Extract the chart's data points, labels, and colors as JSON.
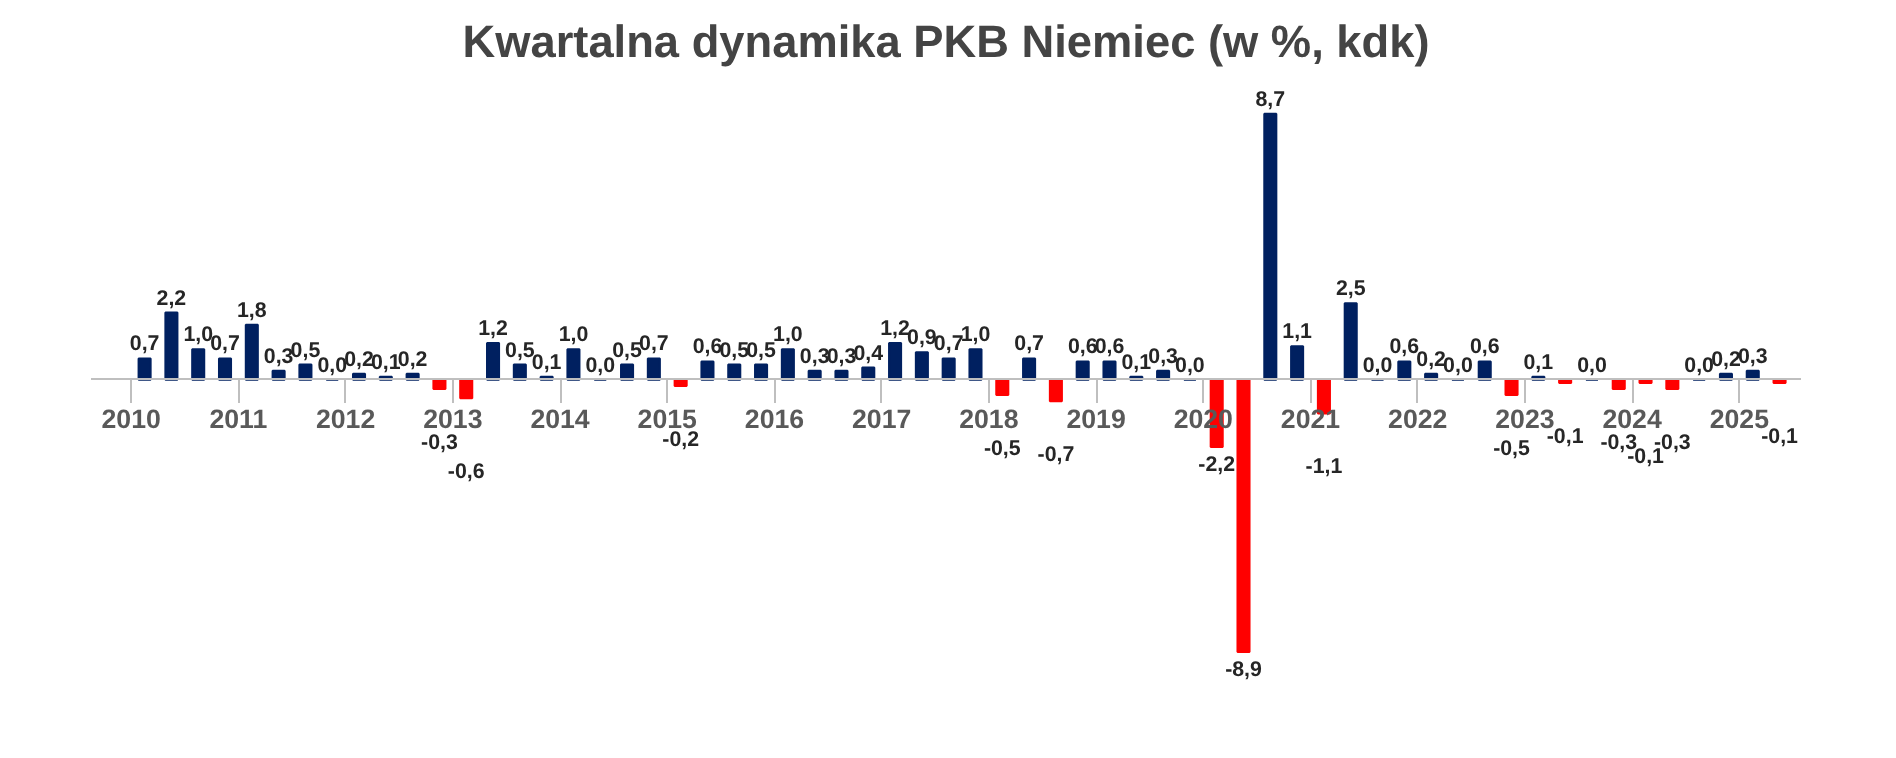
{
  "chart_data": {
    "type": "bar",
    "title": "Kwartalna dynamika PKB Niemiec (w %, kdk)",
    "categories": [
      "2010",
      null,
      null,
      null,
      "2011",
      null,
      null,
      null,
      "2012",
      null,
      null,
      null,
      "2013",
      null,
      null,
      null,
      "2014",
      null,
      null,
      null,
      "2015",
      null,
      null,
      null,
      "2016",
      null,
      null,
      null,
      "2017",
      null,
      null,
      null,
      "2018",
      null,
      null,
      null,
      "2019",
      null,
      null,
      null,
      "2020",
      null,
      null,
      null,
      "2021",
      null,
      null,
      null,
      "2022",
      null,
      null,
      null,
      "2023",
      null,
      null,
      null,
      "2024",
      null,
      null,
      null,
      "2025",
      null
    ],
    "values": [
      0.7,
      2.2,
      1.0,
      0.7,
      1.8,
      0.3,
      0.5,
      0.0,
      0.2,
      0.1,
      0.2,
      -0.3,
      -0.6,
      1.2,
      0.5,
      0.1,
      1.0,
      0.0,
      0.5,
      0.7,
      -0.2,
      0.6,
      0.5,
      0.5,
      1.0,
      0.3,
      0.3,
      0.4,
      1.2,
      0.9,
      0.7,
      1.0,
      -0.5,
      0.7,
      -0.7,
      0.6,
      0.6,
      0.1,
      0.3,
      0.0,
      -2.2,
      -8.9,
      8.7,
      1.1,
      -1.1,
      2.5,
      0.0,
      0.6,
      0.2,
      0.0,
      0.6,
      -0.5,
      0.1,
      -0.1,
      0.0,
      -0.3,
      -0.1,
      -0.3,
      0.0,
      0.2,
      0.3,
      -0.1
    ],
    "colors": [
      "#002060",
      "#002060",
      "#002060",
      "#002060",
      "#002060",
      "#002060",
      "#002060",
      "#002060",
      "#002060",
      "#002060",
      "#002060",
      "#ff0000",
      "#ff0000",
      "#002060",
      "#002060",
      "#002060",
      "#002060",
      "#002060",
      "#002060",
      "#002060",
      "#ff0000",
      "#002060",
      "#002060",
      "#002060",
      "#002060",
      "#002060",
      "#002060",
      "#002060",
      "#002060",
      "#002060",
      "#002060",
      "#002060",
      "#ff0000",
      "#002060",
      "#ff0000",
      "#002060",
      "#002060",
      "#002060",
      "#002060",
      "#002060",
      "#ff0000",
      "#ff0000",
      "#002060",
      "#002060",
      "#ff0000",
      "#002060",
      "#002060",
      "#002060",
      "#002060",
      "#002060",
      "#002060",
      "#ff0000",
      "#002060",
      "#ff0000",
      "#002060",
      "#ff0000",
      "#ff0000",
      "#ff0000",
      "#002060",
      "#002060",
      "#002060",
      "#ff0000"
    ],
    "value_labels": [
      "0,7",
      "2,2",
      "1,0",
      "0,7",
      "1,8",
      "0,3",
      "0,5",
      "0,0",
      "0,2",
      "0,1",
      "0,2",
      "-0,3",
      "-0,6",
      "1,2",
      "0,5",
      "0,1",
      "1,0",
      "0,0",
      "0,5",
      "0,7",
      "-0,2",
      "0,6",
      "0,5",
      "0,5",
      "1,0",
      "0,3",
      "0,3",
      "0,4",
      "1,2",
      "0,9",
      "0,7",
      "1,0",
      "-0,5",
      "0,7",
      "-0,7",
      "0,6",
      "0,6",
      "0,1",
      "0,3",
      "0,0",
      "-2,2",
      "-8,9",
      "8,7",
      "1,1",
      "-1,1",
      "2,5",
      "0,0",
      "0,6",
      "0,2",
      "0,0",
      "0,6",
      "-0,5",
      "0,1",
      "-0,1",
      "0,0",
      "-0,3",
      "-0,1",
      "-0,3",
      "0,0",
      "0,2",
      "0,3",
      "-0,1"
    ],
    "tick_labels": "x"
  }
}
